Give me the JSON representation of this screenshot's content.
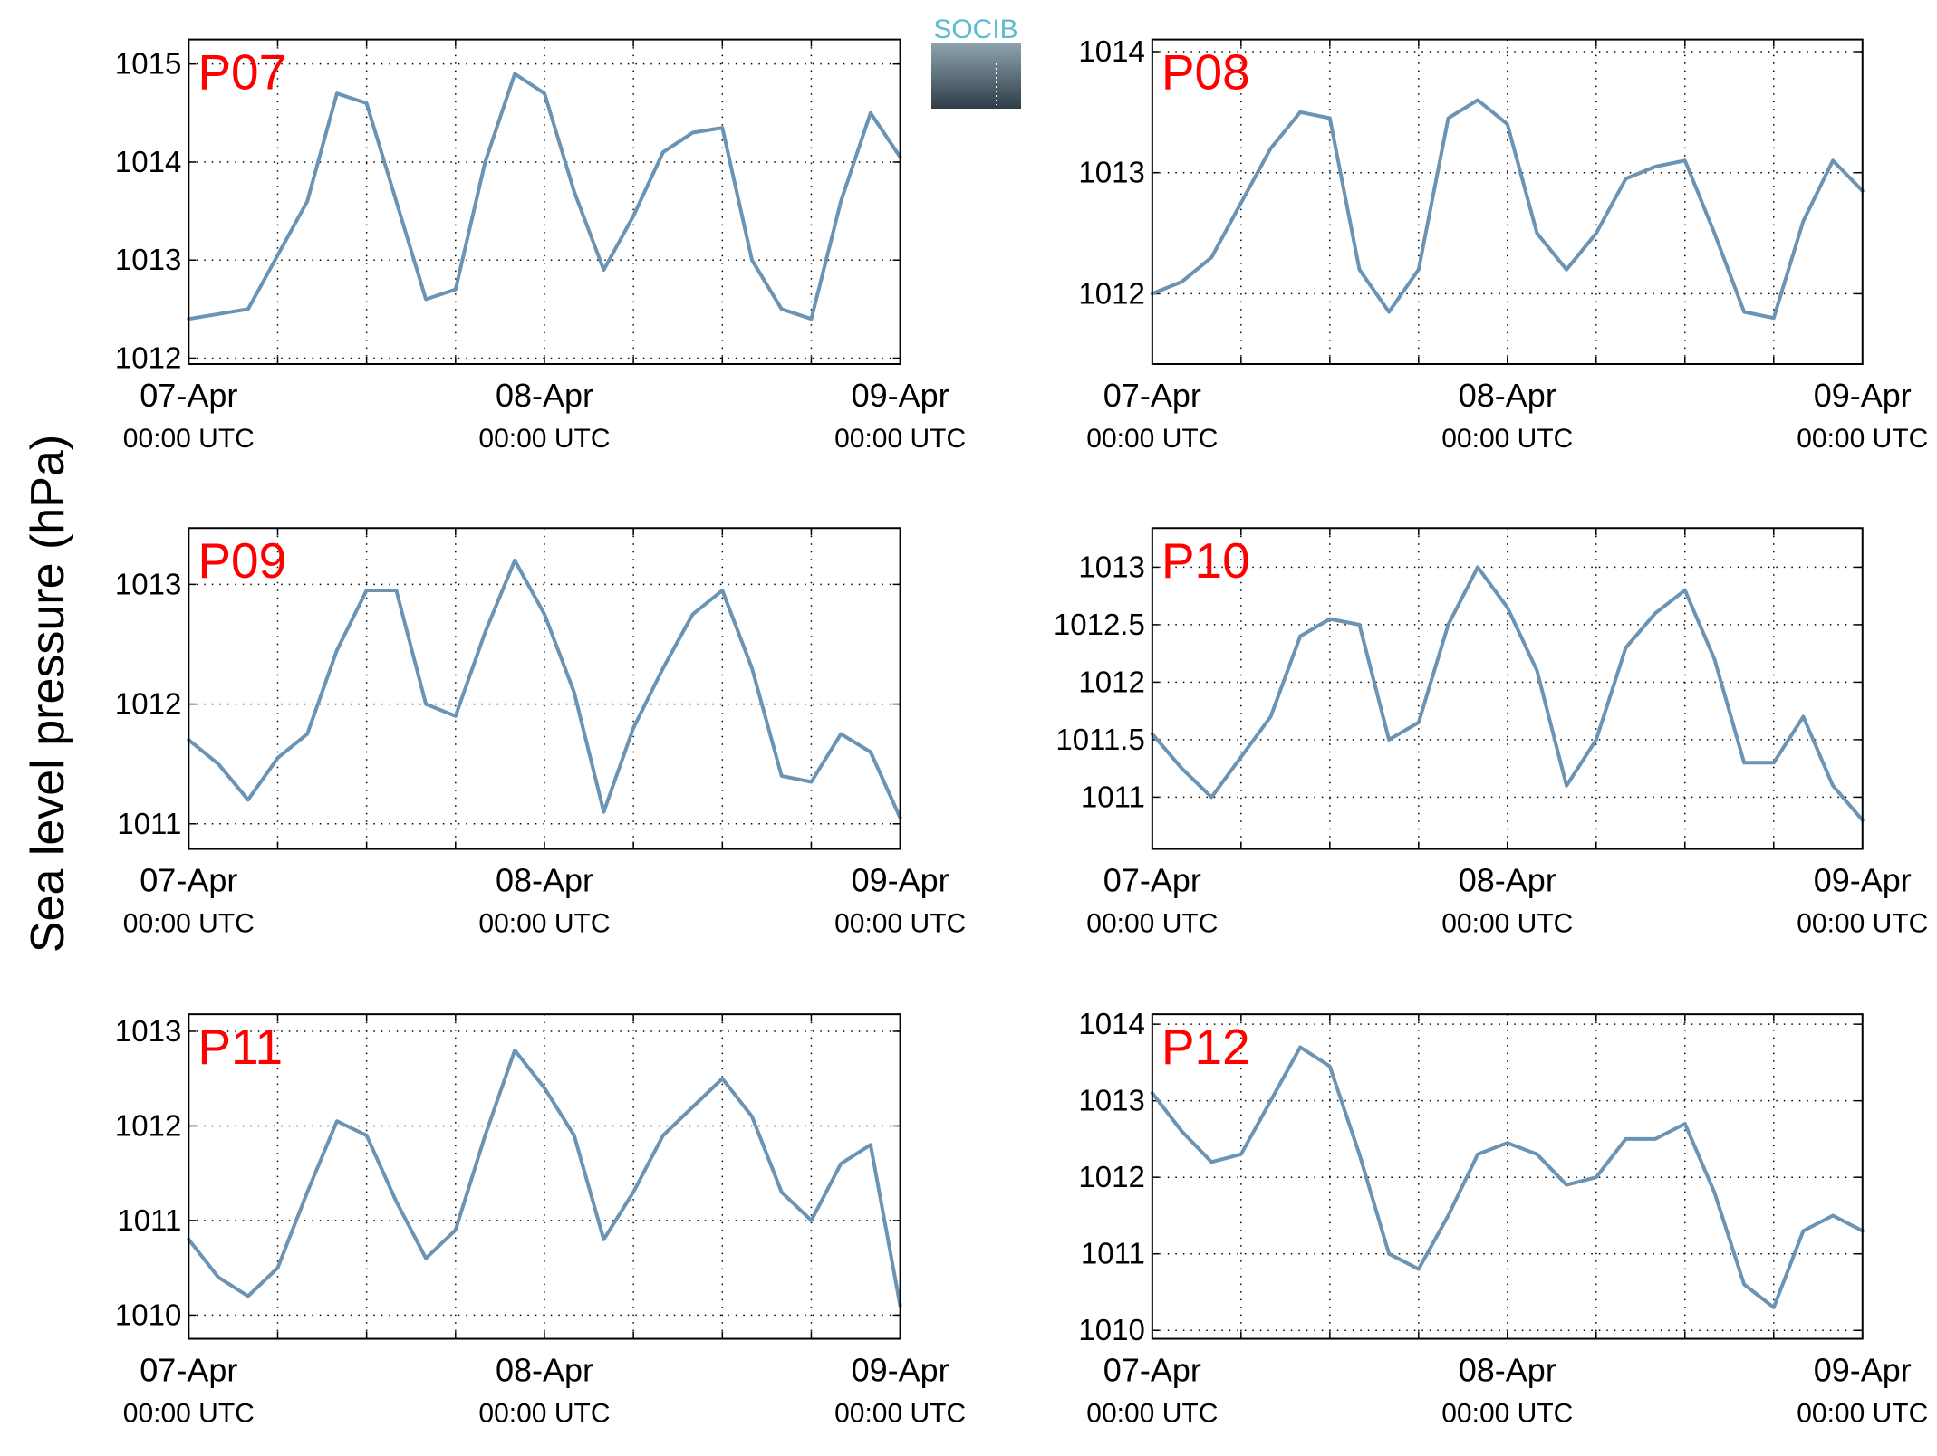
{
  "ylabel": "Sea level pressure (hPa)",
  "logo_text": "SOCIB",
  "chart_data": [
    {
      "type": "line",
      "title": "P07",
      "title_color": "#ff0000",
      "color": "#6a93b4",
      "x": [
        0,
        2,
        4,
        6,
        8,
        10,
        12,
        14,
        16,
        18,
        20,
        22,
        24,
        26,
        28,
        30,
        32,
        34,
        36,
        38,
        40,
        42,
        44,
        46,
        48
      ],
      "values": [
        1012.4,
        1012.45,
        1012.5,
        1013.05,
        1013.6,
        1014.7,
        1014.6,
        1013.6,
        1012.6,
        1012.7,
        1014.0,
        1014.9,
        1014.7,
        1013.7,
        1012.9,
        1013.45,
        1014.1,
        1014.3,
        1014.35,
        1013.0,
        1012.5,
        1012.4,
        1013.6,
        1014.5,
        1014.05
      ],
      "xlim": [
        0,
        48
      ],
      "xticks": [
        {
          "value": 0,
          "label": "07-Apr",
          "sublabel": "00:00 UTC"
        },
        {
          "value": 24,
          "label": "08-Apr",
          "sublabel": "00:00 UTC"
        },
        {
          "value": 48,
          "label": "09-Apr",
          "sublabel": "00:00 UTC"
        }
      ],
      "xgrid": [
        6,
        12,
        18,
        30,
        36,
        42
      ],
      "ylim": [
        1011.94,
        1015.25
      ],
      "yticks": [
        1012,
        1013,
        1014,
        1015
      ],
      "grid": true
    },
    {
      "type": "line",
      "title": "P08",
      "title_color": "#ff0000",
      "color": "#6a93b4",
      "x": [
        0,
        2,
        4,
        6,
        8,
        10,
        12,
        14,
        16,
        18,
        20,
        22,
        24,
        26,
        28,
        30,
        32,
        34,
        36,
        38,
        40,
        42,
        44,
        46,
        48
      ],
      "values": [
        1012.0,
        1012.1,
        1012.3,
        1012.75,
        1013.2,
        1013.5,
        1013.45,
        1012.2,
        1011.85,
        1012.2,
        1013.45,
        1013.6,
        1013.4,
        1012.5,
        1012.2,
        1012.5,
        1012.95,
        1013.05,
        1013.1,
        1012.5,
        1011.85,
        1011.8,
        1012.6,
        1013.1,
        1012.85
      ],
      "xlim": [
        0,
        48
      ],
      "xticks": [
        {
          "value": 0,
          "label": "07-Apr",
          "sublabel": "00:00 UTC"
        },
        {
          "value": 24,
          "label": "08-Apr",
          "sublabel": "00:00 UTC"
        },
        {
          "value": 48,
          "label": "09-Apr",
          "sublabel": "00:00 UTC"
        }
      ],
      "xgrid": [
        6,
        12,
        18,
        30,
        36,
        42
      ],
      "ylim": [
        1011.42,
        1014.1
      ],
      "yticks": [
        1012,
        1013,
        1014
      ],
      "grid": true
    },
    {
      "type": "line",
      "title": "P09",
      "title_color": "#ff0000",
      "color": "#6a93b4",
      "x": [
        0,
        2,
        4,
        6,
        8,
        10,
        12,
        14,
        16,
        18,
        20,
        22,
        24,
        26,
        28,
        30,
        32,
        34,
        36,
        38,
        40,
        42,
        44,
        46,
        48
      ],
      "values": [
        1011.7,
        1011.5,
        1011.2,
        1011.55,
        1011.75,
        1012.45,
        1012.95,
        1012.95,
        1012.0,
        1011.9,
        1012.6,
        1013.2,
        1012.75,
        1012.1,
        1011.1,
        1011.8,
        1012.3,
        1012.75,
        1012.95,
        1012.3,
        1011.4,
        1011.35,
        1011.75,
        1011.6,
        1011.05
      ],
      "xlim": [
        0,
        48
      ],
      "xticks": [
        {
          "value": 0,
          "label": "07-Apr",
          "sublabel": "00:00 UTC"
        },
        {
          "value": 24,
          "label": "08-Apr",
          "sublabel": "00:00 UTC"
        },
        {
          "value": 48,
          "label": "09-Apr",
          "sublabel": "00:00 UTC"
        }
      ],
      "xgrid": [
        6,
        12,
        18,
        30,
        36,
        42
      ],
      "ylim": [
        1010.79,
        1013.47
      ],
      "yticks": [
        1011,
        1012,
        1013
      ],
      "grid": true
    },
    {
      "type": "line",
      "title": "P10",
      "title_color": "#ff0000",
      "color": "#6a93b4",
      "x": [
        0,
        2,
        4,
        6,
        8,
        10,
        12,
        14,
        16,
        18,
        20,
        22,
        24,
        26,
        28,
        30,
        32,
        34,
        36,
        38,
        40,
        42,
        44,
        46,
        48
      ],
      "values": [
        1011.55,
        1011.25,
        1011.0,
        1011.35,
        1011.7,
        1012.4,
        1012.55,
        1012.5,
        1011.5,
        1011.65,
        1012.5,
        1013.0,
        1012.65,
        1012.1,
        1011.1,
        1011.5,
        1012.3,
        1012.6,
        1012.8,
        1012.2,
        1011.3,
        1011.3,
        1011.7,
        1011.1,
        1010.8
      ],
      "xlim": [
        0,
        48
      ],
      "xticks": [
        {
          "value": 0,
          "label": "07-Apr",
          "sublabel": "00:00 UTC"
        },
        {
          "value": 24,
          "label": "08-Apr",
          "sublabel": "00:00 UTC"
        },
        {
          "value": 48,
          "label": "09-Apr",
          "sublabel": "00:00 UTC"
        }
      ],
      "xgrid": [
        6,
        12,
        18,
        30,
        36,
        42
      ],
      "ylim": [
        1010.55,
        1013.34
      ],
      "yticks": [
        1011,
        1011.5,
        1012,
        1012.5,
        1013
      ],
      "grid": true
    },
    {
      "type": "line",
      "title": "P11",
      "title_color": "#ff0000",
      "color": "#6a93b4",
      "x": [
        0,
        2,
        4,
        6,
        8,
        10,
        12,
        14,
        16,
        18,
        20,
        22,
        24,
        26,
        28,
        30,
        32,
        34,
        36,
        38,
        40,
        42,
        44,
        46,
        48
      ],
      "values": [
        1010.8,
        1010.4,
        1010.2,
        1010.5,
        1011.3,
        1012.05,
        1011.9,
        1011.2,
        1010.6,
        1010.9,
        1011.9,
        1012.8,
        1012.4,
        1011.9,
        1010.8,
        1011.3,
        1011.9,
        1012.2,
        1012.5,
        1012.1,
        1011.3,
        1011.0,
        1011.6,
        1011.8,
        1010.1
      ],
      "xlim": [
        0,
        48
      ],
      "xticks": [
        {
          "value": 0,
          "label": "07-Apr",
          "sublabel": "00:00 UTC"
        },
        {
          "value": 24,
          "label": "08-Apr",
          "sublabel": "00:00 UTC"
        },
        {
          "value": 48,
          "label": "09-Apr",
          "sublabel": "00:00 UTC"
        }
      ],
      "xgrid": [
        6,
        12,
        18,
        30,
        36,
        42
      ],
      "ylim": [
        1009.75,
        1013.18
      ],
      "yticks": [
        1010,
        1011,
        1012,
        1013
      ],
      "grid": true
    },
    {
      "type": "line",
      "title": "P12",
      "title_color": "#ff0000",
      "color": "#6a93b4",
      "x": [
        0,
        2,
        4,
        6,
        8,
        10,
        12,
        14,
        16,
        18,
        20,
        22,
        24,
        26,
        28,
        30,
        32,
        34,
        36,
        38,
        40,
        42,
        44,
        46,
        48
      ],
      "values": [
        1013.1,
        1012.6,
        1012.2,
        1012.3,
        1013.0,
        1013.7,
        1013.45,
        1012.3,
        1011.0,
        1010.8,
        1011.5,
        1012.3,
        1012.45,
        1012.3,
        1011.9,
        1012.0,
        1012.5,
        1012.5,
        1012.7,
        1011.8,
        1010.6,
        1010.3,
        1011.3,
        1011.5,
        1011.3
      ],
      "xlim": [
        0,
        48
      ],
      "xticks": [
        {
          "value": 0,
          "label": "07-Apr",
          "sublabel": "00:00 UTC"
        },
        {
          "value": 24,
          "label": "08-Apr",
          "sublabel": "00:00 UTC"
        },
        {
          "value": 48,
          "label": "09-Apr",
          "sublabel": "00:00 UTC"
        }
      ],
      "xgrid": [
        6,
        12,
        18,
        30,
        36,
        42
      ],
      "ylim": [
        1009.89,
        1014.13
      ],
      "yticks": [
        1010,
        1011,
        1012,
        1013,
        1014
      ],
      "grid": true
    }
  ]
}
